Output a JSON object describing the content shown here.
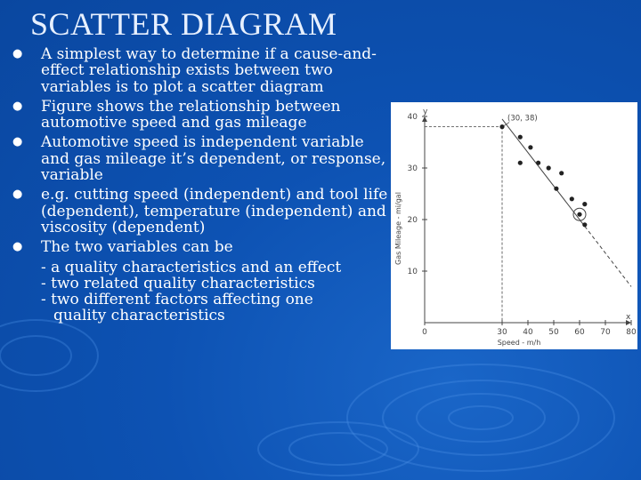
{
  "slide": {
    "title": "SCATTER DIAGRAM",
    "bullets": [
      "A simplest way to determine if a cause-and-effect relationship exists between two variables is to plot a scatter diagram",
      "Figure shows the relationship between automotive speed and gas mileage",
      "Automotive speed is independent variable and gas mileage it’s dependent, or response, variable",
      "e.g. cutting speed (independent) and tool life (dependent), temperature (independent) and viscosity (dependent)",
      "The two variables can be"
    ],
    "sub_items": [
      "- a quality characteristics and an effect",
      "- two related quality characteristics",
      "- two different factors affecting one",
      "quality characteristics"
    ]
  },
  "chart_data": {
    "type": "scatter",
    "title": "",
    "xlabel": "Speed - m/h",
    "ylabel": "Gas Mileage - mi/gal",
    "x_axis_letter": "x",
    "y_axis_letter": "y",
    "xlim": [
      0,
      80
    ],
    "ylim": [
      0,
      40
    ],
    "x_ticks": [
      "0",
      "30",
      "40",
      "50",
      "60",
      "70",
      "80"
    ],
    "y_ticks": [
      "10",
      "20",
      "30",
      "40"
    ],
    "annotation": "(30, 38)",
    "points": [
      {
        "x": 30,
        "y": 38
      },
      {
        "x": 37,
        "y": 36
      },
      {
        "x": 37,
        "y": 31
      },
      {
        "x": 41,
        "y": 34
      },
      {
        "x": 44,
        "y": 31
      },
      {
        "x": 48,
        "y": 30
      },
      {
        "x": 51,
        "y": 26
      },
      {
        "x": 53,
        "y": 29
      },
      {
        "x": 57,
        "y": 24
      },
      {
        "x": 60,
        "y": 21
      },
      {
        "x": 62,
        "y": 23
      },
      {
        "x": 62,
        "y": 19
      }
    ],
    "circled_point": {
      "x": 60,
      "y": 21
    },
    "trend_line": {
      "from": {
        "x": 30,
        "y": 39.5
      },
      "to": {
        "x": 80,
        "y": 7
      }
    }
  }
}
